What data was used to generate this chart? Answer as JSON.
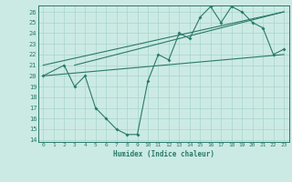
{
  "xlabel": "Humidex (Indice chaleur)",
  "xticks": [
    0,
    1,
    2,
    3,
    4,
    5,
    6,
    7,
    8,
    9,
    10,
    11,
    12,
    13,
    14,
    15,
    16,
    17,
    18,
    19,
    20,
    21,
    22,
    23
  ],
  "yticks": [
    14,
    15,
    16,
    17,
    18,
    19,
    20,
    21,
    22,
    23,
    24,
    25,
    26
  ],
  "xlim": [
    -0.5,
    23.5
  ],
  "ylim": [
    13.8,
    26.6
  ],
  "line_color": "#2a7a6a",
  "bg_color": "#cceae4",
  "grid_color": "#a8d5cc",
  "curve_main_x": [
    0,
    2,
    3,
    4,
    5,
    6,
    7,
    8,
    9,
    10,
    11,
    12,
    13,
    14,
    15,
    16,
    17,
    18,
    19,
    20,
    21,
    22,
    23
  ],
  "curve_main_y": [
    20,
    21,
    19,
    20,
    17,
    16,
    15,
    14.5,
    14.5,
    19.5,
    22,
    21.5,
    24,
    23.5,
    25.5,
    26.5,
    25,
    26.5,
    26,
    25,
    24.5,
    22,
    22.5
  ],
  "upper_line_x": [
    0,
    23
  ],
  "upper_line_y": [
    21,
    26
  ],
  "lower_line_x": [
    0,
    23
  ],
  "lower_line_y": [
    20,
    22
  ],
  "mid_line_x": [
    3,
    23
  ],
  "mid_line_y": [
    21,
    26
  ]
}
